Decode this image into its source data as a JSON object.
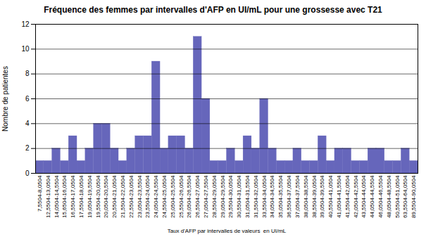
{
  "chart_data": {
    "type": "bar",
    "title": "Fréquence des femmes par intervalles d'AFP en UI/mL pour une grossesse avec T21",
    "xlabel": "Taux d'AFP par intervalles de valeurs  en UI/mL",
    "ylabel": "Nombre de patientes",
    "color": "#6666bb",
    "categories": [
      "7,5504-8,0504",
      "12,5504-13,0504",
      "14,0504-14,5504",
      "15,6504-16,0504",
      "16,5504-17,0504",
      "17,5504-18,0504",
      "19,0504-19,5504",
      "19,5504-20,0504",
      "20,0504-20,5504",
      "20,5504-21,0504",
      "21,5504-22,0504",
      "22,5504-23,0504",
      "23,0504-23,5504",
      "23,5504-24,0504",
      "24,0504-24,5504",
      "24,5504-25,0504",
      "25,0504-25,5504",
      "25,5504-26,0504",
      "26,0504-26,5504",
      "26,5504-27,0504",
      "27,0504-27,5504",
      "28,5504-29,0504",
      "29,0504-29,5504",
      "29,5504-30,0504",
      "30,5504-31,0504",
      "31,0504-31,5504",
      "31,5504-32,0504",
      "33,5504-34,0504",
      "34,0504-34,5504",
      "35,0504-35,5504",
      "36,5504-37,0504",
      "37,0504-37,5504",
      "38,0504-38,5504",
      "38,5504-39,0504",
      "39,0504-39,5504",
      "40,5504-41,0504",
      "41,0504-41,5504",
      "41,5504-42,0504",
      "42,0504-42,5504",
      "43,5504-44,0504",
      "44,0504-44,5504",
      "46,0504-46,5504",
      "48,0504-48,5504",
      "50,5504-51,0504",
      "63,5504-64,0504",
      "89,5504-90,0504"
    ],
    "values": [
      1,
      1,
      2,
      1,
      3,
      1,
      2,
      4,
      4,
      2,
      1,
      2,
      3,
      3,
      9,
      2,
      3,
      3,
      2,
      11,
      6,
      1,
      1,
      2,
      1,
      3,
      2,
      6,
      2,
      1,
      1,
      2,
      1,
      1,
      3,
      1,
      2,
      2,
      1,
      1,
      2,
      2,
      1,
      1,
      2,
      1
    ],
    "ylim": [
      0,
      12
    ],
    "yticks": [
      0,
      2,
      4,
      6,
      8,
      10,
      12
    ],
    "grid": true
  }
}
